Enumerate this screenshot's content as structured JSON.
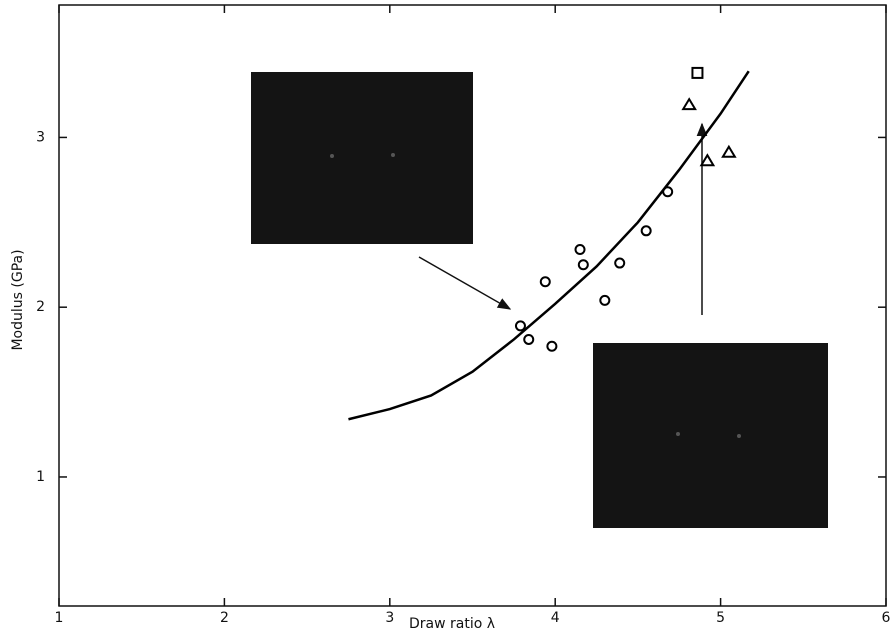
{
  "chart_data": {
    "type": "scatter",
    "x_label": "Draw ratio λ",
    "y_label": "Modulus (GPa)",
    "xlim": [
      1,
      6
    ],
    "ylim": [
      0.24,
      3.78
    ],
    "xticks": [
      1,
      2,
      3,
      4,
      5,
      6
    ],
    "yticks": [
      1,
      2,
      3
    ],
    "series": [
      {
        "marker": "circle",
        "color": "#000000",
        "x": [
          3.79,
          3.84,
          3.94,
          3.98,
          4.15,
          4.17,
          4.3,
          4.39,
          4.55,
          4.68
        ],
        "values": [
          1.89,
          1.81,
          2.15,
          1.77,
          2.34,
          2.25,
          2.04,
          2.26,
          2.45,
          2.68
        ]
      },
      {
        "marker": "triangle",
        "color": "#000000",
        "x": [
          4.81,
          4.92,
          5.05
        ],
        "values": [
          3.19,
          2.86,
          2.91
        ]
      },
      {
        "marker": "square",
        "color": "#000000",
        "x": [
          4.86
        ],
        "values": [
          3.38
        ]
      },
      {
        "marker": "line",
        "color": "#000000",
        "x": [
          2.75,
          3.0,
          3.25,
          3.5,
          3.75,
          4.0,
          4.25,
          4.5,
          4.75,
          5.0,
          5.17
        ],
        "values": [
          1.34,
          1.4,
          1.48,
          1.62,
          1.81,
          2.02,
          2.24,
          2.5,
          2.81,
          3.14,
          3.39
        ]
      }
    ]
  }
}
